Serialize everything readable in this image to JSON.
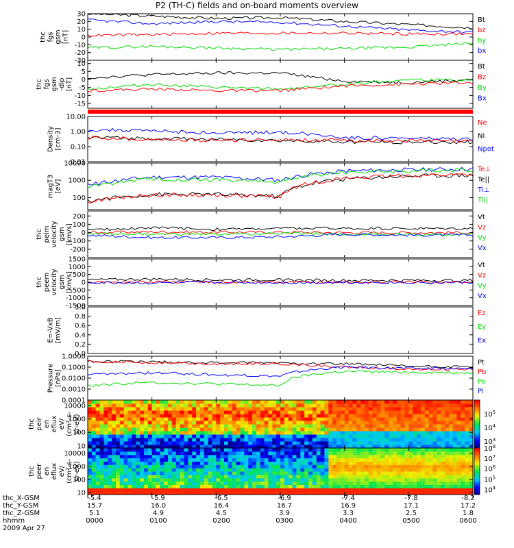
{
  "title": "P2 (TH-C) fields and on-board moments overview",
  "date": "2009 Apr 27",
  "footer": {
    "labels": [
      "thc_X-GSM",
      "thc_Y-GSM",
      "thc_Z-GSM",
      "hhmm"
    ],
    "rows": [
      [
        "-5.4",
        "-5.9",
        "-6.5",
        "-6.9",
        "-7.4",
        "-7.8",
        "-8.2"
      ],
      [
        "15.7",
        "16.0",
        "16.4",
        "16.7",
        "16.9",
        "17.1",
        "17.2"
      ],
      [
        "5.1",
        "4.9",
        "4.5",
        "3.9",
        "3.3",
        "2.5",
        "1.8"
      ],
      [
        "0000",
        "0100",
        "0200",
        "0300",
        "0400",
        "0500",
        "0600"
      ]
    ]
  },
  "chart_data": [
    {
      "type": "line",
      "ylabel": [
        "thc",
        "fgs",
        "gsm",
        "[nT]"
      ],
      "ylim": [
        -30,
        30
      ],
      "yticks": [
        "30",
        "20",
        "10",
        "0",
        "-10",
        "-20",
        "-30"
      ],
      "ytick_values": [
        30,
        20,
        10,
        0,
        -10,
        -20,
        -30
      ],
      "legend": [
        {
          "name": "Bt",
          "color": "#000000"
        },
        {
          "name": "bz",
          "color": "#ff0000"
        },
        {
          "name": "by",
          "color": "#00dd00"
        },
        {
          "name": "bx",
          "color": "#0000ff"
        }
      ],
      "x": [
        0,
        1,
        2,
        3,
        4,
        5,
        6
      ],
      "series": [
        {
          "name": "Bt",
          "color": "#000000",
          "values": [
            30,
            27,
            24,
            25,
            20,
            16,
            12
          ]
        },
        {
          "name": "bz",
          "color": "#ff0000",
          "values": [
            2,
            3,
            5,
            5,
            5,
            4,
            4
          ]
        },
        {
          "name": "by",
          "color": "#00dd00",
          "values": [
            -14,
            -12,
            -14,
            -16,
            -15,
            -13,
            -8
          ]
        },
        {
          "name": "bx",
          "color": "#0000ff",
          "values": [
            22,
            17,
            20,
            19,
            14,
            9,
            6
          ]
        }
      ]
    },
    {
      "type": "line",
      "ylabel": [
        "thc",
        "fgs",
        "gsm",
        "-dip"
      ],
      "ylabel_unit": "[nT]",
      "ylim": [
        -18,
        12
      ],
      "yticks": [
        "10",
        "5",
        "0",
        "-5",
        "-10",
        "-15"
      ],
      "ytick_values": [
        10,
        5,
        0,
        -5,
        -10,
        -15
      ],
      "legend": [
        {
          "name": "Bt",
          "color": "#000000"
        },
        {
          "name": "Bz",
          "color": "#ff0000"
        },
        {
          "name": "By",
          "color": "#00dd00"
        },
        {
          "name": "Bx",
          "color": "#0000ff"
        }
      ],
      "x": [
        0,
        1,
        2,
        3,
        4,
        5,
        6
      ],
      "series": [
        {
          "name": "Bt",
          "color": "#000000",
          "values": [
            1,
            3,
            4,
            4,
            -1,
            -2,
            0
          ]
        },
        {
          "name": "By",
          "color": "#00dd00",
          "values": [
            -6,
            -3,
            -5,
            -6,
            -3,
            0,
            -1
          ]
        },
        {
          "name": "Bz",
          "color": "#ff0000",
          "values": [
            -7,
            -6,
            -7,
            -7,
            -4,
            -3,
            -2
          ]
        }
      ]
    },
    {
      "type": "line",
      "ylabel": [
        "Density",
        "[cm-3]"
      ],
      "ylim": [
        0.01,
        10
      ],
      "log": true,
      "yticks": [
        "10.00",
        "1.00",
        "0.10",
        "0.01"
      ],
      "ytick_values": [
        10,
        1,
        0.1,
        0.01
      ],
      "legend": [
        {
          "name": "Ne",
          "color": "#ff0000"
        },
        {
          "name": "Ni",
          "color": "#000000"
        },
        {
          "name": "Npot",
          "color": "#0000ff"
        }
      ],
      "x": [
        0,
        1,
        2,
        3,
        4,
        5,
        6
      ],
      "series": [
        {
          "name": "Npot",
          "color": "#0000ff",
          "values": [
            1.3,
            1.1,
            0.8,
            0.9,
            0.4,
            0.35,
            0.3
          ]
        },
        {
          "name": "Ni",
          "color": "#000000",
          "values": [
            0.4,
            0.35,
            0.3,
            0.25,
            0.2,
            0.2,
            0.2
          ]
        },
        {
          "name": "Ne",
          "color": "#ff0000",
          "values": [
            0.4,
            0.3,
            0.25,
            0.3,
            0.25,
            0.25,
            0.22
          ]
        }
      ]
    },
    {
      "type": "line",
      "ylabel": [
        "magT3",
        "[eV]"
      ],
      "ylim": [
        20,
        10000
      ],
      "log": true,
      "yticks": [
        "10000",
        "1000",
        "100"
      ],
      "ytick_values": [
        10000,
        1000,
        100
      ],
      "legend": [
        {
          "name": "Te⊥",
          "color": "#ff0000"
        },
        {
          "name": "Te||",
          "color": "#000000"
        },
        {
          "name": "Ti⊥",
          "color": "#0000ff"
        },
        {
          "name": "Ti||",
          "color": "#00dd00"
        }
      ],
      "x": [
        0,
        1,
        2,
        3,
        4,
        5,
        6
      ],
      "series": [
        {
          "name": "Ti⊥",
          "color": "#0000ff",
          "values": [
            500,
            1500,
            1500,
            1000,
            3500,
            4000,
            4500
          ]
        },
        {
          "name": "Ti||",
          "color": "#00dd00",
          "values": [
            400,
            1200,
            1100,
            800,
            3000,
            3500,
            4000
          ]
        },
        {
          "name": "Te||",
          "color": "#000000",
          "values": [
            60,
            150,
            150,
            120,
            1200,
            1800,
            2000
          ]
        },
        {
          "name": "Te⊥",
          "color": "#ff0000",
          "values": [
            55,
            140,
            140,
            110,
            1300,
            1900,
            2200
          ]
        }
      ]
    },
    {
      "type": "line",
      "ylabel": [
        "thc",
        "peim",
        "velocity",
        "gsm",
        "[km/s]"
      ],
      "ylim": [
        -300,
        260
      ],
      "yticks": [
        "200",
        "100",
        "0",
        "-100",
        "-200"
      ],
      "ytick_values": [
        200,
        100,
        0,
        -100,
        -200
      ],
      "legend": [
        {
          "name": "Vt",
          "color": "#000000"
        },
        {
          "name": "Vz",
          "color": "#ff0000"
        },
        {
          "name": "Vy",
          "color": "#00dd00"
        },
        {
          "name": "Vx",
          "color": "#0000ff"
        }
      ],
      "x": [
        0,
        1,
        2,
        3,
        4,
        5,
        6
      ],
      "series": [
        {
          "name": "Vt",
          "color": "#000000",
          "values": [
            30,
            60,
            40,
            50,
            50,
            50,
            50
          ]
        },
        {
          "name": "Vz",
          "color": "#ff0000",
          "values": [
            0,
            10,
            5,
            5,
            0,
            0,
            0
          ]
        },
        {
          "name": "Vy",
          "color": "#00dd00",
          "values": [
            -10,
            -20,
            -20,
            -10,
            -20,
            -20,
            -20
          ]
        },
        {
          "name": "Vx",
          "color": "#0000ff",
          "values": [
            -30,
            -60,
            -60,
            -50,
            -20,
            -30,
            -30
          ]
        }
      ]
    },
    {
      "type": "line",
      "ylabel": [
        "thc",
        "peem",
        "velocity",
        "gsm",
        "[km/s]"
      ],
      "ylim": [
        -1500,
        1500
      ],
      "yticks": [
        "1500",
        "1000",
        "500",
        "0",
        "-500",
        "-1000",
        "-1500"
      ],
      "ytick_values": [
        1500,
        1000,
        500,
        0,
        -500,
        -1000,
        -1500
      ],
      "legend": [
        {
          "name": "Vt",
          "color": "#000000"
        },
        {
          "name": "Vz",
          "color": "#ff0000"
        },
        {
          "name": "Vy",
          "color": "#00dd00"
        },
        {
          "name": "Vx",
          "color": "#0000ff"
        }
      ],
      "x": [
        0,
        1,
        2,
        3,
        4,
        5,
        6
      ],
      "series": [
        {
          "name": "Vt",
          "color": "#000000",
          "values": [
            150,
            200,
            150,
            150,
            120,
            120,
            120
          ]
        },
        {
          "name": "Vz",
          "color": "#ff0000",
          "values": [
            0,
            10,
            0,
            0,
            0,
            0,
            0
          ]
        },
        {
          "name": "Vx",
          "color": "#0000ff",
          "values": [
            -30,
            -50,
            -30,
            -30,
            -20,
            -20,
            -20
          ]
        }
      ]
    },
    {
      "type": "line",
      "ylabel": [
        "E=-VxB",
        "[mV/m]"
      ],
      "ylim": [
        0,
        1
      ],
      "yticks": [
        "1.0",
        "0.8",
        "0.6",
        "0.4",
        "0.2",
        "0.0"
      ],
      "ytick_values": [
        1,
        0.8,
        0.6,
        0.4,
        0.2,
        0
      ],
      "legend": [
        {
          "name": "Ez",
          "color": "#ff0000"
        },
        {
          "name": "Ey",
          "color": "#00dd00"
        },
        {
          "name": "Ex",
          "color": "#0000ff"
        }
      ],
      "x": [],
      "series": []
    },
    {
      "type": "line",
      "ylabel": [
        "Pressure",
        "[nPa]"
      ],
      "ylim": [
        0.0001,
        1
      ],
      "log": true,
      "yticks": [
        "1.0000",
        "0.1000",
        "0.0100",
        "0.0010",
        "0.0001"
      ],
      "ytick_values": [
        1,
        0.1,
        0.01,
        0.001,
        0.0001
      ],
      "legend": [
        {
          "name": "Pt",
          "color": "#000000"
        },
        {
          "name": "Pb",
          "color": "#ff0000"
        },
        {
          "name": "Pe",
          "color": "#00dd00"
        },
        {
          "name": "Pi",
          "color": "#0000ff"
        }
      ],
      "x": [
        0,
        1,
        2,
        3,
        4,
        5,
        6
      ],
      "series": [
        {
          "name": "Pt",
          "color": "#000000",
          "values": [
            0.35,
            0.3,
            0.25,
            0.25,
            0.2,
            0.12,
            0.1
          ]
        },
        {
          "name": "Pb",
          "color": "#ff0000",
          "values": [
            0.35,
            0.25,
            0.2,
            0.2,
            0.1,
            0.07,
            0.06
          ]
        },
        {
          "name": "Pi",
          "color": "#0000ff",
          "values": [
            0.02,
            0.03,
            0.02,
            0.015,
            0.1,
            0.08,
            0.07
          ]
        },
        {
          "name": "Pe",
          "color": "#00dd00",
          "values": [
            0.002,
            0.004,
            0.003,
            0.002,
            0.04,
            0.035,
            0.03
          ]
        }
      ]
    },
    {
      "type": "heatmap",
      "ylabel": [
        "thc",
        "peir",
        "en",
        "eflux",
        "eV/",
        "(cm^2-s-",
        "sr-eV)"
      ],
      "yticks": [
        "10000",
        "1000",
        "100",
        "10"
      ],
      "ytick_values": [
        10000,
        1000,
        100,
        10
      ],
      "ylim": [
        7,
        25000
      ],
      "log": true,
      "colorbar_ticks": [
        "10^5",
        "10^4",
        "10^3"
      ],
      "colorbar_values": [
        5,
        4,
        3
      ],
      "clim": [
        2.5,
        6
      ]
    },
    {
      "type": "heatmap",
      "ylabel": [
        "thc",
        "peer",
        "en",
        "eflux",
        "eV/",
        "(cm^2-s-",
        "sr-eV)"
      ],
      "yticks": [
        "10000",
        "1000",
        "100",
        "10"
      ],
      "ytick_values": [
        10000,
        1000,
        100,
        10
      ],
      "ylim": [
        7,
        25000
      ],
      "log": true,
      "colorbar_ticks": [
        "10^8",
        "10^7",
        "10^6",
        "10^5",
        "10^4"
      ],
      "colorbar_values": [
        8,
        7,
        6,
        5,
        4
      ],
      "clim": [
        3.5,
        8
      ]
    }
  ]
}
